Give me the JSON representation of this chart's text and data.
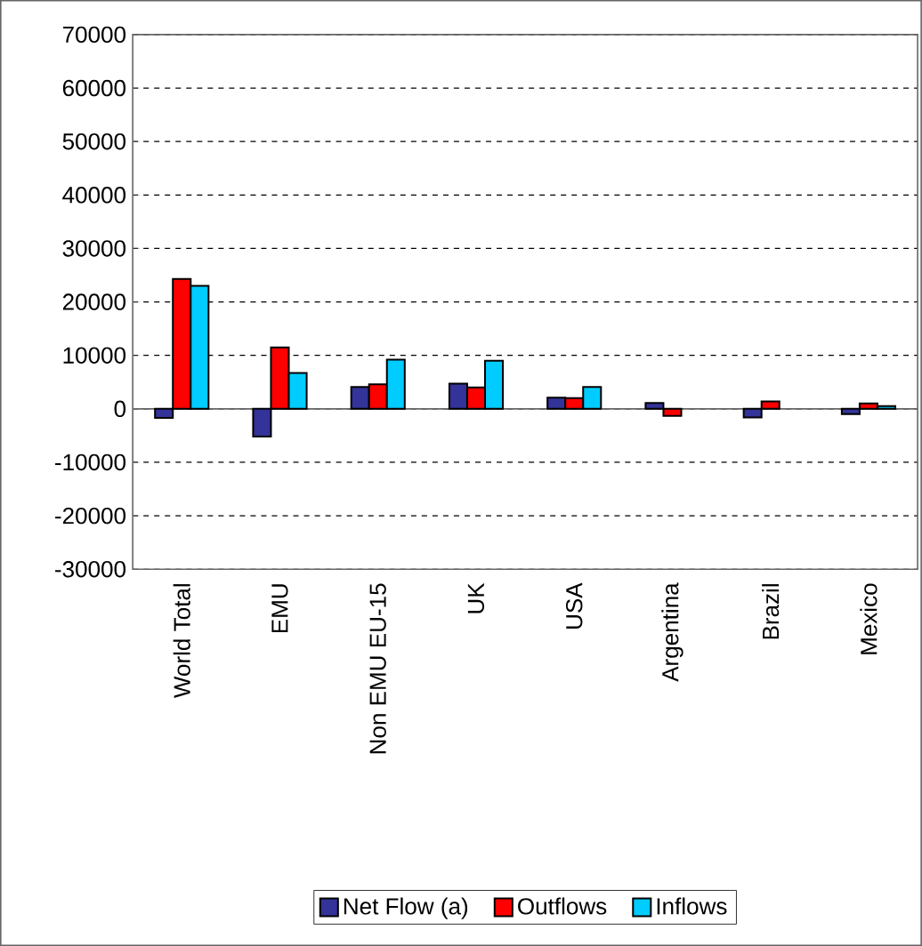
{
  "chart_data": {
    "type": "bar",
    "categories": [
      "World Total",
      "EMU",
      "Non EMU EU-15",
      "UK",
      "USA",
      "Argentina",
      "Brazil",
      "Mexico"
    ],
    "series": [
      {
        "name": "Net Flow (a)",
        "color": "#333399",
        "values": [
          -1700,
          -5200,
          4100,
          4700,
          2100,
          1100,
          -1600,
          -1000
        ]
      },
      {
        "name": "Outflows",
        "color": "#ff0000",
        "values": [
          24300,
          11500,
          4600,
          4000,
          2000,
          -1300,
          1400,
          1000
        ]
      },
      {
        "name": "Inflows",
        "color": "#00ccff",
        "values": [
          23000,
          6700,
          9200,
          9000,
          4100,
          null,
          null,
          500
        ]
      }
    ],
    "ylim": [
      -30000,
      70000
    ],
    "yticks": [
      -30000,
      -20000,
      -10000,
      0,
      10000,
      20000,
      30000,
      40000,
      50000,
      60000,
      70000
    ],
    "grid": "y",
    "legend": "bottom"
  }
}
